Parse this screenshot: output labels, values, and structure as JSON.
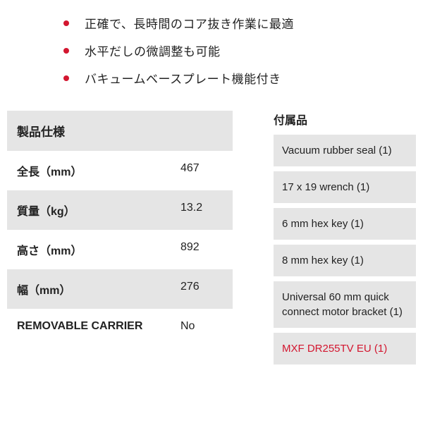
{
  "accent_color": "#d3162f",
  "bullets": [
    "正確で、長時間のコア抜き作業に最適",
    "水平だしの微調整も可能",
    "バキュームベースプレート機能付き"
  ],
  "specs": {
    "header": "製品仕様",
    "rows": [
      {
        "label": "全長（mm）",
        "value": "467"
      },
      {
        "label": "質量（kg）",
        "value": "13.2"
      },
      {
        "label": "高さ（mm）",
        "value": "892"
      },
      {
        "label": "幅（mm）",
        "value": "276"
      },
      {
        "label": "REMOVABLE CARRIER",
        "value": "No"
      }
    ]
  },
  "accessories": {
    "header": "付属品",
    "items": [
      {
        "text": "Vacuum rubber seal (1)",
        "highlight": false
      },
      {
        "text": "17 x 19 wrench (1)",
        "highlight": false
      },
      {
        "text": "6 mm hex key (1)",
        "highlight": false
      },
      {
        "text": "8 mm hex key (1)",
        "highlight": false
      },
      {
        "text": "Universal 60 mm quick connect motor bracket (1)",
        "highlight": false
      },
      {
        "text": "MXF DR255TV EU (1)",
        "highlight": true
      }
    ]
  }
}
